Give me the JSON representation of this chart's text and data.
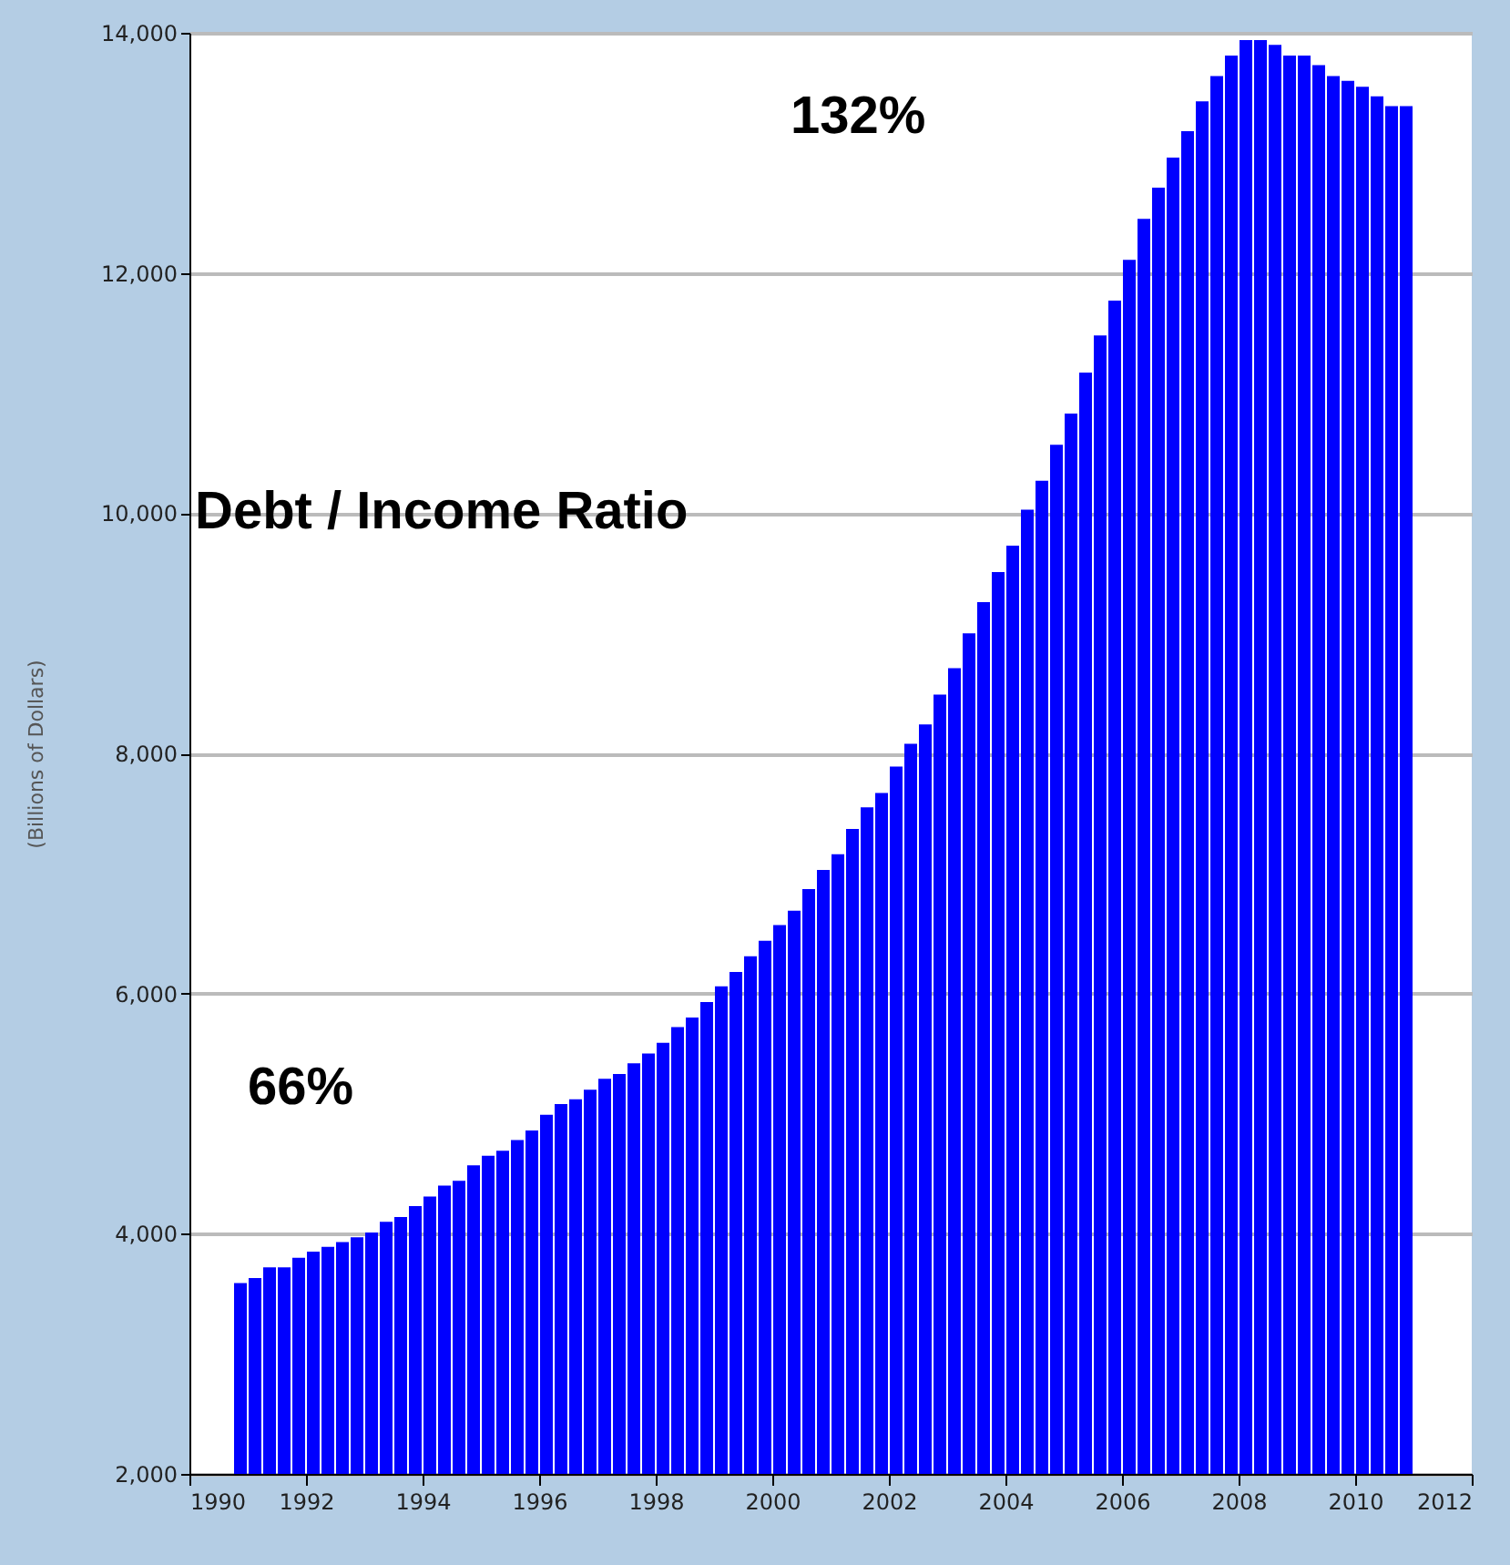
{
  "chart_data": {
    "type": "bar",
    "ylabel": "(Billions of Dollars)",
    "x": [
      1990.875,
      1991.125,
      1991.375,
      1991.625,
      1991.875,
      1992.125,
      1992.375,
      1992.625,
      1992.875,
      1993.125,
      1993.375,
      1993.625,
      1993.875,
      1994.125,
      1994.375,
      1994.625,
      1994.875,
      1995.125,
      1995.375,
      1995.625,
      1995.875,
      1996.125,
      1996.375,
      1996.625,
      1996.875,
      1997.125,
      1997.375,
      1997.625,
      1997.875,
      1998.125,
      1998.375,
      1998.625,
      1998.875,
      1999.125,
      1999.375,
      1999.625,
      1999.875,
      2000.125,
      2000.375,
      2000.625,
      2000.875,
      2001.125,
      2001.375,
      2001.625,
      2001.875,
      2002.125,
      2002.375,
      2002.625,
      2002.875,
      2003.125,
      2003.375,
      2003.625,
      2003.875,
      2004.125,
      2004.375,
      2004.625,
      2004.875,
      2005.125,
      2005.375,
      2005.625,
      2005.875,
      2006.125,
      2006.375,
      2006.625,
      2006.875,
      2007.125,
      2007.375,
      2007.625,
      2007.875,
      2008.125,
      2008.375,
      2008.625,
      2008.875,
      2009.125,
      2009.375,
      2009.625,
      2009.875,
      2010.125,
      2010.375,
      2010.625,
      2010.875
    ],
    "series": [
      {
        "color": "#0000ff",
        "values": [
          3590,
          3630,
          3720,
          3720,
          3800,
          3850,
          3890,
          3930,
          3970,
          4010,
          4100,
          4140,
          4230,
          4310,
          4400,
          4440,
          4570,
          4650,
          4690,
          4780,
          4860,
          4990,
          5080,
          5120,
          5200,
          5290,
          5330,
          5420,
          5500,
          5590,
          5720,
          5800,
          5930,
          6060,
          6180,
          6310,
          6440,
          6570,
          6690,
          6870,
          7030,
          7160,
          7370,
          7550,
          7670,
          7890,
          8080,
          8240,
          8490,
          8710,
          9000,
          9260,
          9510,
          9730,
          10030,
          10270,
          10570,
          10830,
          11170,
          11480,
          11770,
          12110,
          12450,
          12710,
          12960,
          13180,
          13430,
          13640,
          13810,
          13940,
          13940,
          13900,
          13810,
          13810,
          13730,
          13640,
          13600,
          13550,
          13470,
          13390,
          13390
        ]
      }
    ],
    "xlim": [
      1990,
      2012
    ],
    "xticks": [
      1990,
      1992,
      1994,
      1996,
      1998,
      2000,
      2002,
      2004,
      2006,
      2008,
      2010,
      2012
    ],
    "ylim": [
      2000,
      14000
    ],
    "yticks": [
      {
        "value": 2000,
        "label": "2,000"
      },
      {
        "value": 4000,
        "label": "4,000"
      },
      {
        "value": 6000,
        "label": "6,000"
      },
      {
        "value": 8000,
        "label": "8,000"
      },
      {
        "value": 10000,
        "label": "10,000"
      },
      {
        "value": 12000,
        "label": "12,000"
      },
      {
        "value": 14000,
        "label": "14,000"
      }
    ],
    "grid": "y",
    "annotations": [
      "132%",
      "Debt / Income Ratio",
      "66%"
    ]
  }
}
